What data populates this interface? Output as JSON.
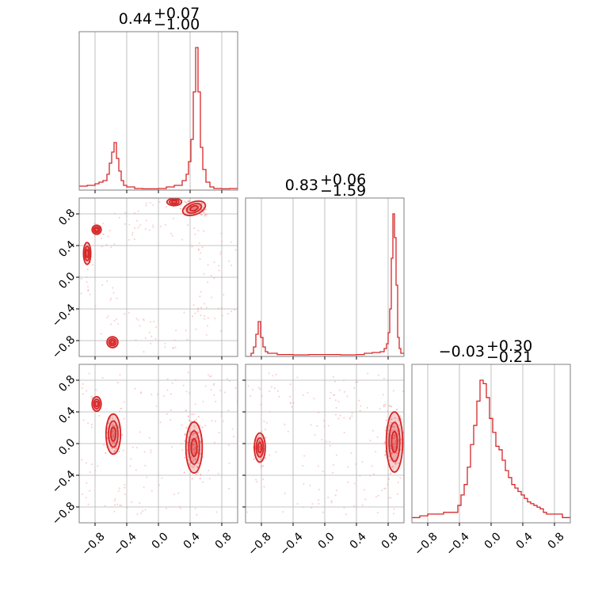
{
  "chart_data": {
    "type": "corner",
    "color": "#d62728",
    "parameters": [
      {
        "title_value": "0.44",
        "err_plus": "+0.07",
        "err_minus": "−1.00"
      },
      {
        "title_value": "0.83",
        "err_plus": "+0.06",
        "err_minus": "−1.59"
      },
      {
        "title_value": "−0.03",
        "err_plus": "+0.30",
        "err_minus": "−0.21"
      }
    ],
    "axis_range": [
      -1.0,
      1.0
    ],
    "ticks": [
      -0.8,
      -0.4,
      0.0,
      0.4,
      0.8
    ],
    "tick_labels": [
      "−0.8",
      "−0.4",
      "0.0",
      "0.4",
      "0.8"
    ],
    "grid": true,
    "histograms": [
      {
        "x": [
          -1.0,
          -0.95,
          -0.9,
          -0.85,
          -0.8,
          -0.75,
          -0.7,
          -0.65,
          -0.62,
          -0.59,
          -0.56,
          -0.53,
          -0.5,
          -0.47,
          -0.44,
          -0.4,
          -0.3,
          -0.2,
          -0.1,
          0.0,
          0.1,
          0.2,
          0.3,
          0.35,
          0.38,
          0.41,
          0.44,
          0.47,
          0.5,
          0.53,
          0.56,
          0.6,
          0.65,
          0.7,
          0.8,
          0.9,
          1.0
        ],
        "density": [
          0.025,
          0.025,
          0.03,
          0.03,
          0.04,
          0.05,
          0.06,
          0.1,
          0.17,
          0.24,
          0.3,
          0.2,
          0.12,
          0.06,
          0.03,
          0.02,
          0.01,
          0.008,
          0.008,
          0.01,
          0.02,
          0.03,
          0.06,
          0.1,
          0.18,
          0.32,
          0.62,
          0.9,
          0.62,
          0.27,
          0.13,
          0.05,
          0.02,
          0.01,
          0.008,
          0.01,
          0.01
        ]
      },
      {
        "x": [
          -1.0,
          -0.93,
          -0.9,
          -0.87,
          -0.84,
          -0.81,
          -0.78,
          -0.75,
          -0.72,
          -0.69,
          -0.6,
          -0.4,
          -0.2,
          0.0,
          0.2,
          0.4,
          0.5,
          0.6,
          0.7,
          0.75,
          0.78,
          0.8,
          0.82,
          0.84,
          0.86,
          0.88,
          0.9,
          0.92,
          0.94,
          0.96,
          1.0
        ],
        "density": [
          0.0,
          0.02,
          0.06,
          0.14,
          0.22,
          0.12,
          0.06,
          0.03,
          0.02,
          0.02,
          0.012,
          0.01,
          0.012,
          0.012,
          0.01,
          0.012,
          0.02,
          0.025,
          0.03,
          0.05,
          0.08,
          0.15,
          0.3,
          0.62,
          0.9,
          0.75,
          0.45,
          0.12,
          0.05,
          0.02,
          0.01
        ]
      },
      {
        "x": [
          -1.0,
          -0.9,
          -0.8,
          -0.7,
          -0.6,
          -0.5,
          -0.42,
          -0.38,
          -0.34,
          -0.3,
          -0.26,
          -0.22,
          -0.18,
          -0.14,
          -0.1,
          -0.06,
          -0.02,
          0.02,
          0.06,
          0.1,
          0.14,
          0.18,
          0.22,
          0.26,
          0.3,
          0.34,
          0.38,
          0.42,
          0.46,
          0.5,
          0.54,
          0.58,
          0.62,
          0.66,
          0.7,
          0.8,
          0.9,
          1.0
        ],
        "density": [
          0.03,
          0.04,
          0.05,
          0.05,
          0.06,
          0.06,
          0.1,
          0.16,
          0.22,
          0.32,
          0.45,
          0.56,
          0.7,
          0.82,
          0.8,
          0.72,
          0.6,
          0.52,
          0.44,
          0.42,
          0.36,
          0.3,
          0.26,
          0.22,
          0.2,
          0.18,
          0.16,
          0.14,
          0.12,
          0.11,
          0.1,
          0.09,
          0.08,
          0.06,
          0.05,
          0.05,
          0.03,
          0.03
        ]
      }
    ]
  }
}
